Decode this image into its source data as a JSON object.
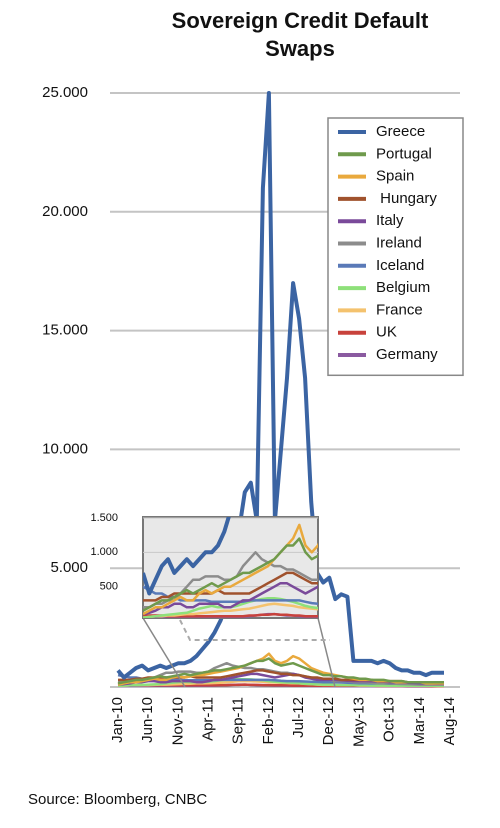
{
  "chart_data": {
    "type": "line",
    "title": "Sovereign Credit Default Swaps",
    "source": "Source: Bloomberg, CNBC",
    "categories": [
      "Jan-10",
      null,
      null,
      null,
      null,
      "Jun-10",
      null,
      null,
      null,
      null,
      "Nov-10",
      null,
      null,
      null,
      null,
      "Apr-11",
      null,
      null,
      null,
      null,
      "Sep-11",
      null,
      null,
      null,
      null,
      "Feb-12",
      null,
      null,
      null,
      null,
      "Jul-12",
      null,
      null,
      null,
      null,
      "Dec-12",
      null,
      null,
      null,
      null,
      "May-13",
      null,
      null,
      null,
      null,
      "Oct-13",
      null,
      null,
      null,
      null,
      "Mar-14",
      null,
      null,
      null,
      null,
      "Aug-14"
    ],
    "ylim": [
      0,
      25000
    ],
    "yticks": [
      {
        "value": 5000,
        "label": "5.000"
      },
      {
        "value": 10000,
        "label": "10.000"
      },
      {
        "value": 15000,
        "label": "15.000"
      },
      {
        "value": 20000,
        "label": "20.000"
      },
      {
        "value": 25000,
        "label": "25.000"
      }
    ],
    "grid": true,
    "legend": "upper right",
    "inset": {
      "ylim": [
        0,
        1500
      ],
      "yticks": [
        500,
        {
          "value": 1000,
          "label": "1.000"
        },
        {
          "value": 1500,
          "label": "1.500"
        }
      ]
    },
    "series": [
      {
        "name": "Greece",
        "color": "#3b64a3",
        "values": [
          700,
          400,
          600,
          800,
          900,
          700,
          800,
          900,
          800,
          900,
          1000,
          1000,
          1100,
          1300,
          1600,
          1900,
          2300,
          2800,
          3500,
          5000,
          6500,
          8200,
          8600,
          7000,
          21000,
          25000,
          7000,
          10000,
          13000,
          17000,
          15500,
          13000,
          7800,
          4800,
          4400,
          4600,
          3700,
          3900,
          3800,
          1100,
          1100,
          1100,
          1100,
          1000,
          1100,
          1000,
          800,
          700,
          700,
          600,
          600,
          500,
          600,
          600,
          600,
          null
        ]
      },
      {
        "name": "Portugal",
        "color": "#6f9a4c",
        "values": [
          150,
          200,
          250,
          300,
          300,
          350,
          400,
          450,
          400,
          450,
          500,
          550,
          500,
          550,
          600,
          650,
          700,
          700,
          750,
          800,
          850,
          900,
          1000,
          1100,
          1100,
          1200,
          1000,
          900,
          950,
          1000,
          900,
          800,
          700,
          600,
          500,
          500,
          450,
          450,
          400,
          400,
          350,
          350,
          300,
          300,
          300,
          250,
          250,
          250,
          200,
          200,
          200,
          200,
          200,
          200,
          200,
          null
        ]
      },
      {
        "name": "Spain",
        "color": "#e9a93d",
        "values": [
          100,
          150,
          200,
          200,
          250,
          300,
          350,
          300,
          300,
          400,
          450,
          400,
          450,
          500,
          500,
          550,
          600,
          650,
          700,
          750,
          800,
          900,
          1000,
          1100,
          1200,
          1400,
          1100,
          1000,
          1100,
          1300,
          1200,
          1000,
          800,
          700,
          600,
          550,
          500,
          450,
          400,
          350,
          300,
          300,
          300,
          250,
          250,
          250,
          200,
          200,
          200,
          200,
          200,
          150,
          150,
          150,
          150,
          null
        ]
      },
      {
        "name": " Hungary",
        "color": "#a0522d",
        "values": [
          300,
          300,
          300,
          350,
          350,
          400,
          400,
          400,
          400,
          400,
          400,
          400,
          450,
          400,
          400,
          400,
          400,
          400,
          450,
          500,
          550,
          600,
          650,
          700,
          700,
          650,
          600,
          550,
          550,
          500,
          500,
          450,
          400,
          400,
          350,
          350,
          350,
          300,
          300,
          300,
          300,
          300,
          300,
          250,
          250,
          250,
          250,
          250,
          200,
          200,
          200,
          200,
          200,
          200,
          200,
          null
        ]
      },
      {
        "name": "Italy",
        "color": "#7a4a9a",
        "values": [
          100,
          120,
          150,
          200,
          200,
          250,
          250,
          200,
          200,
          250,
          250,
          250,
          250,
          200,
          200,
          250,
          300,
          300,
          350,
          400,
          450,
          500,
          550,
          550,
          500,
          450,
          400,
          450,
          500,
          550,
          500,
          400,
          350,
          300,
          300,
          300,
          300,
          280,
          260,
          250,
          250,
          250,
          240,
          230,
          220,
          200,
          200,
          190,
          180,
          170,
          160,
          150,
          150,
          140,
          140,
          null
        ]
      },
      {
        "name": "Ireland",
        "color": "#8c8c8c",
        "values": [
          200,
          200,
          250,
          250,
          300,
          300,
          400,
          500,
          600,
          600,
          650,
          650,
          650,
          600,
          600,
          650,
          800,
          900,
          1000,
          900,
          850,
          800,
          800,
          750,
          750,
          700,
          650,
          600,
          600,
          550,
          500,
          450,
          400,
          350,
          300,
          300,
          250,
          250,
          250,
          200,
          200,
          200,
          180,
          160,
          150,
          150,
          140,
          130,
          120,
          110,
          100,
          100,
          100,
          100,
          100,
          null
        ]
      },
      {
        "name": "Iceland",
        "color": "#5a7ab8",
        "values": [
          500,
          450,
          400,
          400,
          350,
          350,
          300,
          300,
          300,
          300,
          300,
          280,
          280,
          280,
          280,
          280,
          280,
          300,
          300,
          300,
          300,
          300,
          300,
          300,
          300,
          300,
          280,
          260,
          250,
          250,
          240,
          230,
          220,
          210,
          200,
          200,
          200,
          190,
          180,
          170,
          160,
          160,
          150,
          150,
          150,
          140,
          140,
          130,
          130,
          130,
          120,
          120,
          120,
          120,
          120,
          null
        ]
      },
      {
        "name": "Belgium",
        "color": "#8ee07a",
        "values": [
          50,
          60,
          70,
          80,
          90,
          100,
          110,
          120,
          150,
          180,
          200,
          220,
          200,
          200,
          200,
          220,
          250,
          280,
          300,
          320,
          330,
          330,
          320,
          300,
          280,
          250,
          220,
          200,
          190,
          180,
          160,
          140,
          120,
          110,
          100,
          100,
          90,
          80,
          80,
          70,
          70,
          70,
          60,
          60,
          60,
          50,
          50,
          50,
          50,
          50,
          50,
          50,
          50,
          50,
          50,
          null
        ]
      },
      {
        "name": "France",
        "color": "#f4c26e",
        "values": [
          50,
          60,
          70,
          70,
          80,
          80,
          90,
          100,
          100,
          110,
          120,
          130,
          140,
          150,
          150,
          160,
          170,
          180,
          200,
          220,
          240,
          250,
          240,
          230,
          220,
          200,
          190,
          180,
          170,
          160,
          150,
          130,
          120,
          100,
          90,
          90,
          80,
          80,
          70,
          70,
          60,
          60,
          60,
          60,
          50,
          50,
          50,
          50,
          50,
          50,
          50,
          50,
          50,
          40,
          40,
          null
        ]
      },
      {
        "name": "UK",
        "color": "#c8423c",
        "values": [
          80,
          80,
          80,
          80,
          70,
          70,
          70,
          70,
          70,
          70,
          70,
          70,
          70,
          70,
          70,
          70,
          70,
          80,
          80,
          90,
          90,
          100,
          90,
          90,
          80,
          80,
          70,
          70,
          70,
          60,
          60,
          60,
          60,
          50,
          50,
          50,
          50,
          50,
          50,
          50,
          50,
          50,
          50,
          40,
          40,
          40,
          40,
          40,
          40,
          40,
          40,
          40,
          30,
          30,
          30,
          null
        ]
      },
      {
        "name": "Germany",
        "color": "#8a5aa0",
        "values": [
          40,
          40,
          40,
          40,
          40,
          40,
          50,
          50,
          50,
          50,
          50,
          50,
          50,
          50,
          50,
          50,
          60,
          70,
          80,
          90,
          100,
          100,
          90,
          80,
          80,
          70,
          60,
          60,
          60,
          50,
          50,
          40,
          40,
          40,
          40,
          40,
          30,
          30,
          30,
          30,
          30,
          30,
          30,
          30,
          30,
          30,
          30,
          30,
          25,
          25,
          25,
          25,
          25,
          25,
          25,
          null
        ]
      }
    ]
  }
}
